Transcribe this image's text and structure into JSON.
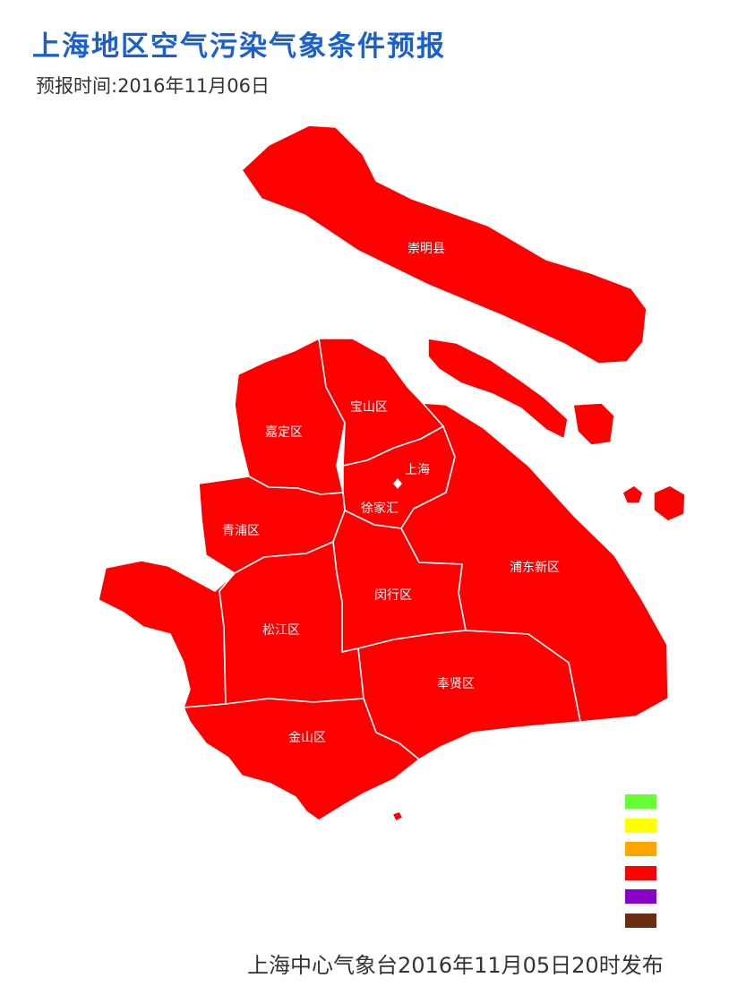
{
  "header": {
    "title": "上海地区空气污染气象条件预报",
    "forecast_time": "预报时间:2016年11月06日"
  },
  "footer": {
    "issued": "上海中心气象台2016年11月05日20时发布"
  },
  "map": {
    "fill_color": "#ff0000",
    "boundary_color": "#ffffff",
    "districts": [
      {
        "id": "chongming",
        "label": "崇明县"
      },
      {
        "id": "baoshan",
        "label": "宝山区"
      },
      {
        "id": "jiading",
        "label": "嘉定区"
      },
      {
        "id": "urban",
        "label": "上海"
      },
      {
        "id": "xujiahui",
        "label": "徐家汇"
      },
      {
        "id": "qingpu",
        "label": "青浦区"
      },
      {
        "id": "pudong",
        "label": "浦东新区"
      },
      {
        "id": "minhang",
        "label": "闵行区"
      },
      {
        "id": "songjiang",
        "label": "松江区"
      },
      {
        "id": "fengxian",
        "label": "奉贤区"
      },
      {
        "id": "jinshan",
        "label": "金山区"
      }
    ]
  },
  "legend": {
    "swatches": [
      "#66ff33",
      "#ffff00",
      "#ffa500",
      "#ff0000",
      "#8b00c8",
      "#6b2c10"
    ]
  }
}
